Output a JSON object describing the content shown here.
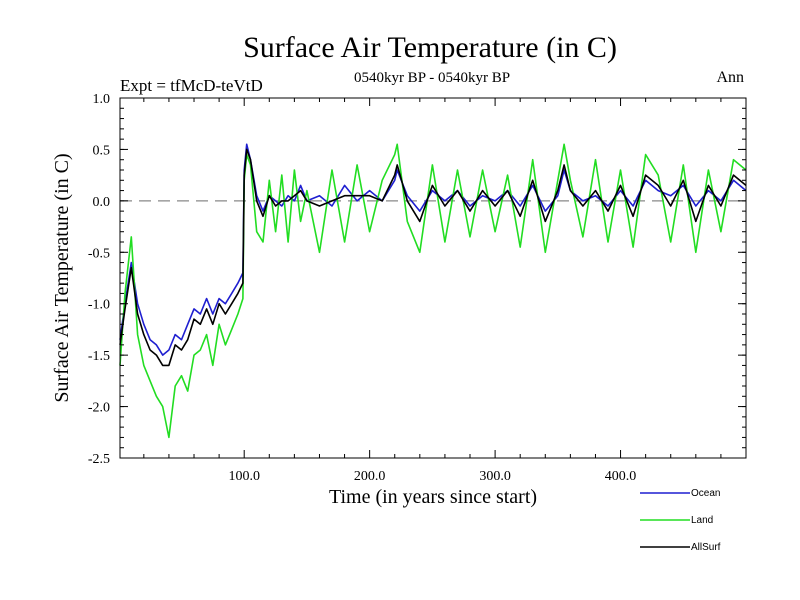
{
  "chart_data": {
    "type": "line",
    "title": "Surface Air Temperature (in C)",
    "subtitle_left": "Expt = tfMcD-teVtD",
    "subtitle_center": "0540kyr BP - 0540kyr BP",
    "subtitle_right": "Ann",
    "xlabel": "Time (in years since start)",
    "ylabel": "Surface Air Temperature (in C)",
    "xlim": [
      1,
      500
    ],
    "ylim": [
      -2.5,
      1.0
    ],
    "x_ticks": [
      100,
      200,
      300,
      400
    ],
    "x_tick_labels": [
      "100.0",
      "200.0",
      "300.0",
      "400.0"
    ],
    "y_ticks": [
      -2.5,
      -2.0,
      -1.5,
      -1.0,
      -0.5,
      0.0,
      0.5,
      1.0
    ],
    "y_tick_labels": [
      "-2.5",
      "-2.0",
      "-1.5",
      "-1.0",
      "-0.5",
      "0.0",
      "0.5",
      "1.0"
    ],
    "reference_line": {
      "y": 0.0,
      "style": "dashed",
      "color": "#888888"
    },
    "grid": false,
    "legend_position": "bottom-right",
    "series": [
      {
        "name": "Ocean",
        "color": "#1f1fd0",
        "x": [
          1,
          5,
          10,
          15,
          20,
          25,
          30,
          35,
          40,
          45,
          50,
          55,
          60,
          65,
          70,
          75,
          80,
          85,
          90,
          95,
          99,
          100,
          102,
          105,
          110,
          115,
          120,
          125,
          130,
          135,
          140,
          145,
          150,
          160,
          170,
          180,
          190,
          200,
          210,
          220,
          222,
          230,
          240,
          250,
          260,
          270,
          280,
          290,
          300,
          310,
          320,
          330,
          340,
          350,
          355,
          360,
          370,
          380,
          390,
          400,
          410,
          420,
          430,
          440,
          450,
          460,
          470,
          480,
          490,
          500
        ],
        "y": [
          -1.35,
          -1.0,
          -0.6,
          -1.0,
          -1.2,
          -1.35,
          -1.4,
          -1.5,
          -1.45,
          -1.3,
          -1.35,
          -1.2,
          -1.05,
          -1.1,
          -0.95,
          -1.1,
          -0.95,
          -1.0,
          -0.9,
          -0.8,
          -0.7,
          0.3,
          0.55,
          0.4,
          0.05,
          -0.1,
          0.05,
          0.0,
          -0.05,
          0.05,
          0.0,
          0.15,
          0.0,
          0.05,
          -0.05,
          0.15,
          0.0,
          0.1,
          0.0,
          0.2,
          0.3,
          0.05,
          -0.1,
          0.1,
          0.0,
          0.1,
          -0.05,
          0.05,
          0.0,
          0.1,
          -0.05,
          0.15,
          -0.1,
          0.05,
          0.3,
          0.1,
          0.0,
          0.05,
          -0.05,
          0.1,
          -0.05,
          0.2,
          0.1,
          0.05,
          0.15,
          -0.05,
          0.1,
          0.0,
          0.2,
          0.1
        ]
      },
      {
        "name": "Land",
        "color": "#22dd22",
        "x": [
          1,
          5,
          10,
          15,
          20,
          25,
          30,
          35,
          40,
          45,
          50,
          55,
          60,
          65,
          70,
          75,
          80,
          85,
          90,
          95,
          99,
          100,
          102,
          105,
          110,
          115,
          120,
          125,
          130,
          135,
          140,
          145,
          150,
          160,
          170,
          180,
          190,
          200,
          210,
          220,
          222,
          230,
          240,
          250,
          260,
          270,
          280,
          290,
          300,
          310,
          320,
          330,
          340,
          350,
          355,
          360,
          370,
          380,
          390,
          400,
          410,
          420,
          430,
          440,
          450,
          460,
          470,
          480,
          490,
          500
        ],
        "y": [
          -1.6,
          -0.9,
          -0.35,
          -1.3,
          -1.6,
          -1.75,
          -1.9,
          -2.0,
          -2.3,
          -1.8,
          -1.7,
          -1.85,
          -1.5,
          -1.45,
          -1.3,
          -1.6,
          -1.2,
          -1.4,
          -1.25,
          -1.1,
          -0.95,
          0.2,
          0.45,
          0.35,
          -0.3,
          -0.4,
          0.2,
          -0.3,
          0.25,
          -0.4,
          0.3,
          -0.2,
          0.1,
          -0.5,
          0.3,
          -0.4,
          0.35,
          -0.3,
          0.2,
          0.45,
          0.55,
          -0.2,
          -0.5,
          0.35,
          -0.4,
          0.3,
          -0.35,
          0.3,
          -0.3,
          0.25,
          -0.45,
          0.4,
          -0.5,
          0.2,
          0.55,
          0.2,
          -0.35,
          0.4,
          -0.4,
          0.3,
          -0.45,
          0.45,
          0.25,
          -0.4,
          0.35,
          -0.5,
          0.3,
          -0.3,
          0.4,
          0.3
        ]
      },
      {
        "name": "AllSurf",
        "color": "#000000",
        "x": [
          1,
          5,
          10,
          15,
          20,
          25,
          30,
          35,
          40,
          45,
          50,
          55,
          60,
          65,
          70,
          75,
          80,
          85,
          90,
          95,
          99,
          100,
          102,
          105,
          110,
          115,
          120,
          125,
          130,
          135,
          140,
          145,
          150,
          160,
          170,
          180,
          190,
          200,
          210,
          220,
          222,
          230,
          240,
          250,
          260,
          270,
          280,
          290,
          300,
          310,
          320,
          330,
          340,
          350,
          355,
          360,
          370,
          380,
          390,
          400,
          410,
          420,
          430,
          440,
          450,
          460,
          470,
          480,
          490,
          500
        ],
        "y": [
          -1.4,
          -1.05,
          -0.65,
          -1.1,
          -1.3,
          -1.45,
          -1.5,
          -1.6,
          -1.6,
          -1.4,
          -1.45,
          -1.35,
          -1.15,
          -1.2,
          -1.05,
          -1.2,
          -1.0,
          -1.1,
          -1.0,
          -0.9,
          -0.8,
          0.25,
          0.5,
          0.4,
          0.0,
          -0.15,
          0.05,
          -0.05,
          0.0,
          0.0,
          0.05,
          0.1,
          0.0,
          -0.05,
          0.0,
          0.05,
          0.05,
          0.05,
          0.0,
          0.25,
          0.35,
          0.0,
          -0.2,
          0.15,
          -0.05,
          0.1,
          -0.1,
          0.1,
          -0.05,
          0.1,
          -0.15,
          0.2,
          -0.2,
          0.1,
          0.35,
          0.1,
          -0.05,
          0.1,
          -0.1,
          0.15,
          -0.15,
          0.25,
          0.15,
          -0.05,
          0.2,
          -0.2,
          0.15,
          -0.05,
          0.25,
          0.15
        ]
      }
    ]
  }
}
